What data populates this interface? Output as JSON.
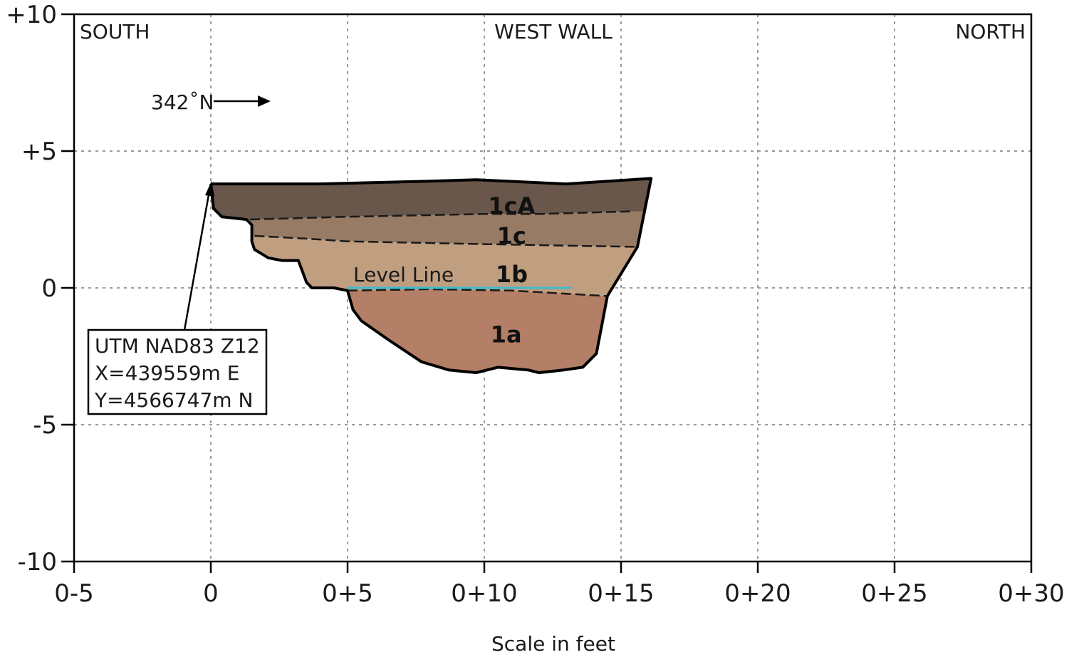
{
  "section": {
    "wall_label": "WEST WALL",
    "left_end": "SOUTH",
    "right_end": "NORTH",
    "orientation": "342˚N",
    "x_axis_label": "Scale in feet"
  },
  "axes": {
    "x_range": [
      -5,
      30
    ],
    "y_range": [
      -10,
      10
    ],
    "x_ticks": [
      -5,
      0,
      5,
      10,
      15,
      20,
      25,
      30
    ],
    "x_tick_labels": [
      "0-5",
      "0",
      "0+5",
      "0+10",
      "0+15",
      "0+20",
      "0+25",
      "0+30"
    ],
    "y_ticks": [
      10,
      5,
      0,
      -5,
      -10
    ],
    "y_tick_labels": [
      "+10",
      "+5",
      "0",
      "-5",
      "-10"
    ],
    "grid": true
  },
  "datum_box": {
    "line1": "UTM NAD83 Z12",
    "line2": "X=439559m E",
    "line3": "Y=4566747m N"
  },
  "level_line": {
    "label": "Level Line",
    "color": "#3bbcd0",
    "from_x": 5,
    "to_x": 13.2,
    "y": 0
  },
  "layers": [
    {
      "id": "1cA",
      "label": "1cA",
      "color": "#68574a",
      "upper": [
        [
          0,
          3.8
        ],
        [
          4,
          3.8
        ],
        [
          8,
          3.9
        ],
        [
          9.7,
          3.95
        ],
        [
          13,
          3.8
        ],
        [
          16.1,
          4.0
        ]
      ],
      "lower": [
        [
          0,
          2.9
        ],
        [
          0.3,
          2.6
        ],
        [
          1.4,
          2.5
        ],
        [
          5,
          2.6
        ],
        [
          10,
          2.7
        ],
        [
          12,
          2.7
        ],
        [
          15.5,
          2.8
        ]
      ]
    },
    {
      "id": "1c",
      "label": "1c",
      "color": "#977b64",
      "upper": [
        [
          1.4,
          2.5
        ],
        [
          5,
          2.6
        ],
        [
          10,
          2.7
        ],
        [
          12,
          2.7
        ],
        [
          15.5,
          2.8
        ]
      ],
      "lower": [
        [
          1.6,
          1.9
        ],
        [
          3.5,
          1.8
        ],
        [
          5,
          1.7
        ],
        [
          10,
          1.6
        ],
        [
          15.5,
          1.5
        ]
      ]
    },
    {
      "id": "1b",
      "label": "1b",
      "color": "#c09e80",
      "upper": [
        [
          1.6,
          1.9
        ],
        [
          3.5,
          1.8
        ],
        [
          5,
          1.7
        ],
        [
          10,
          1.6
        ],
        [
          15.5,
          1.5
        ]
      ],
      "lower": [
        [
          5,
          -0.1
        ],
        [
          8,
          -0.05
        ],
        [
          11,
          -0.1
        ],
        [
          14.5,
          -0.3
        ]
      ]
    },
    {
      "id": "1a",
      "label": "1a",
      "color": "#b37f66",
      "upper": [
        [
          5,
          -0.1
        ],
        [
          8,
          -0.05
        ],
        [
          11,
          -0.1
        ],
        [
          14.5,
          -0.3
        ]
      ],
      "lower": [
        [
          7.7,
          -2.7
        ],
        [
          9.7,
          -3.1
        ],
        [
          12,
          -3.1
        ],
        [
          14.1,
          -2.4
        ]
      ]
    }
  ],
  "profile_outline": [
    [
      0,
      3.8
    ],
    [
      4,
      3.8
    ],
    [
      8,
      3.9
    ],
    [
      9.7,
      3.95
    ],
    [
      13,
      3.8
    ],
    [
      16.1,
      4.0
    ],
    [
      15.6,
      1.5
    ],
    [
      14.5,
      -0.3
    ],
    [
      14.1,
      -2.4
    ],
    [
      13.6,
      -2.9
    ],
    [
      12.9,
      -3.0
    ],
    [
      12.0,
      -3.1
    ],
    [
      11.6,
      -3.0
    ],
    [
      10.5,
      -2.9
    ],
    [
      9.7,
      -3.1
    ],
    [
      8.7,
      -3.0
    ],
    [
      7.7,
      -2.7
    ],
    [
      6.5,
      -1.9
    ],
    [
      5.5,
      -1.2
    ],
    [
      5.2,
      -0.8
    ],
    [
      5.0,
      -0.1
    ],
    [
      4.5,
      0.0
    ],
    [
      3.7,
      0.0
    ],
    [
      3.5,
      0.2
    ],
    [
      3.2,
      1.0
    ],
    [
      2.6,
      1.0
    ],
    [
      2.1,
      1.1
    ],
    [
      1.6,
      1.4
    ],
    [
      1.5,
      1.7
    ],
    [
      1.5,
      2.3
    ],
    [
      1.3,
      2.5
    ],
    [
      0.4,
      2.6
    ],
    [
      0.1,
      2.9
    ],
    [
      0,
      3.8
    ]
  ],
  "layer_label_positions": [
    {
      "label": "1cA",
      "x": 11.0,
      "y": 3.0
    },
    {
      "label": "1c",
      "x": 11.0,
      "y": 1.9
    },
    {
      "label": "1b",
      "x": 11.0,
      "y": 0.5
    },
    {
      "label": "1a",
      "x": 10.8,
      "y": -1.7
    }
  ]
}
